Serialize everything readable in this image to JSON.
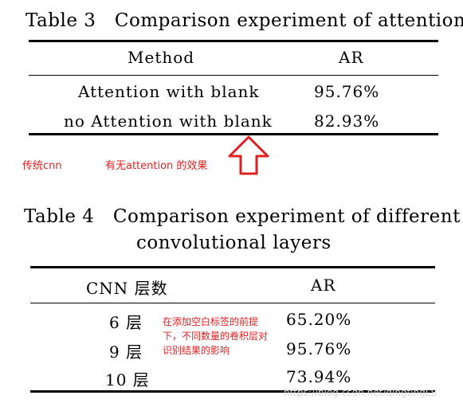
{
  "table3": {
    "caption": "Table 3　Comparison experiment of attention",
    "headers": {
      "method": "Method",
      "ar": "AR"
    },
    "rows": [
      {
        "method": "Attention with blank",
        "ar": "95.76%"
      },
      {
        "method": "no Attention with blank",
        "ar": "82.93%"
      }
    ]
  },
  "annotations": {
    "traditional": "传统cnn",
    "attention_effect": "有无attention 的效果",
    "layers_note": "在添加空白标签的前提下，不同数量的卷积层对识别结果的影响",
    "arrow_color": "#e02020"
  },
  "table4": {
    "caption_line1": "Table 4　Comparison experiment of different",
    "caption_line2": "convolutional layers",
    "headers": {
      "layers": "CNN 层数",
      "ar": "AR"
    },
    "rows": [
      {
        "layers": "6 层",
        "ar": "65.20%"
      },
      {
        "layers": "9 层",
        "ar": "95.76%"
      },
      {
        "layers": "10 层",
        "ar": "73.94%"
      }
    ]
  },
  "watermark": "https://blog.csdn.net/qingtingLS"
}
